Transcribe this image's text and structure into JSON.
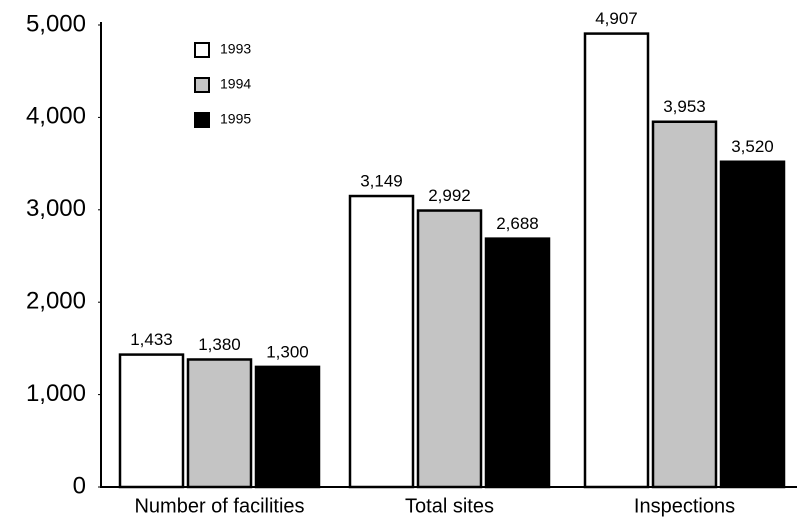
{
  "chart_data": {
    "type": "bar",
    "categories": [
      "Number of facilities",
      "Total sites",
      "Inspections"
    ],
    "series": [
      {
        "name": "1993",
        "color": "#ffffff",
        "values": [
          1433,
          3149,
          4907
        ],
        "value_labels": [
          "1,433",
          "3,149",
          "4,907"
        ]
      },
      {
        "name": "1994",
        "color": "#c4c4c4",
        "values": [
          1380,
          2992,
          3953
        ],
        "value_labels": [
          "1,380",
          "2,992",
          "3,953"
        ]
      },
      {
        "name": "1995",
        "color": "#000000",
        "values": [
          1300,
          2688,
          3520
        ],
        "value_labels": [
          "1,300",
          "2,688",
          "3,520"
        ]
      }
    ],
    "ylim": [
      0,
      5000
    ],
    "yticks": [
      0,
      {
        "value": 1000,
        "label": "1,000"
      },
      {
        "value": 2000,
        "label": "2,000"
      },
      {
        "value": 3000,
        "label": "3,000"
      },
      {
        "value": 4000,
        "label": "4,000"
      },
      {
        "value": 5000,
        "label": "5,000"
      }
    ],
    "grid": false,
    "legend": "upper left"
  }
}
